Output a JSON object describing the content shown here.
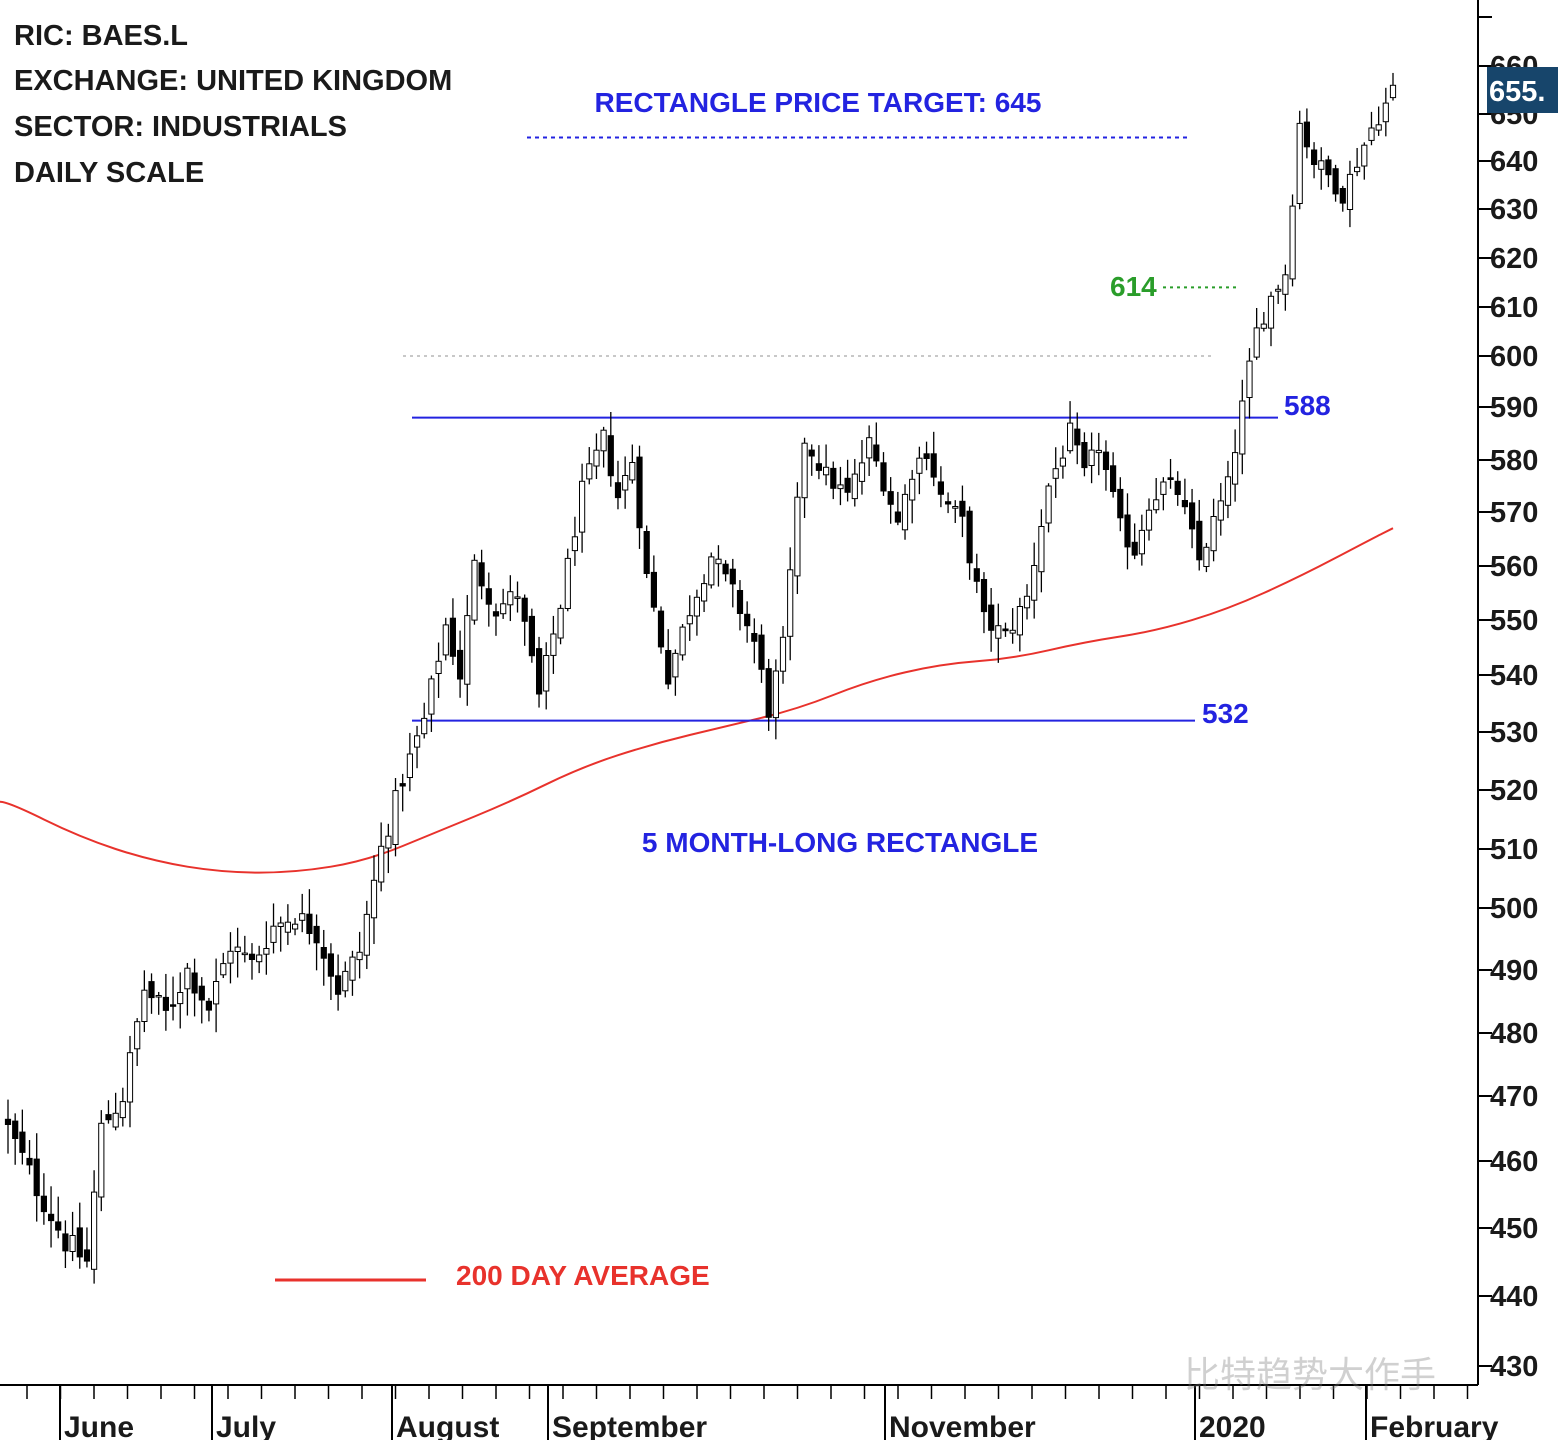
{
  "header": {
    "ric": "RIC: BAES.L",
    "exchange": "EXCHANGE: UNITED KINGDOM",
    "sector": "SECTOR: INDUSTRIALS",
    "scale": "DAILY SCALE"
  },
  "watermark": "比特趋势大作手",
  "colors": {
    "candle": "#000000",
    "up": "#ffffff",
    "ma": "#e8322c",
    "pattern": "#2323e0",
    "breakout": "#2a9d2a",
    "axis": "#000000"
  },
  "chart_data": {
    "type": "candlestick",
    "title": "",
    "ylim": [
      430,
      662
    ],
    "y_ticks": [
      430,
      440,
      450,
      460,
      470,
      480,
      490,
      500,
      510,
      520,
      530,
      540,
      550,
      560,
      570,
      580,
      590,
      600,
      610,
      620,
      630,
      640,
      650,
      660
    ],
    "y_tick_labels": [
      "430",
      "440",
      "450",
      "460",
      "470",
      "480",
      "490",
      "500",
      "510",
      "520",
      "530",
      "540",
      "550",
      "560",
      "570",
      "580",
      "590",
      "600",
      "610",
      "620",
      "630",
      "640",
      "650",
      "660"
    ],
    "x_labels": [
      "June",
      "July",
      "August",
      "September",
      "November",
      "2020",
      "February"
    ],
    "last_price_label": "655.",
    "grid": false,
    "price_path": [
      [
        0,
        465
      ],
      [
        4,
        456
      ],
      [
        8,
        448
      ],
      [
        11,
        445
      ],
      [
        13,
        465
      ],
      [
        16,
        470
      ],
      [
        19,
        487
      ],
      [
        22,
        483
      ],
      [
        25,
        490
      ],
      [
        28,
        484
      ],
      [
        31,
        494
      ],
      [
        34,
        491
      ],
      [
        37,
        497
      ],
      [
        40,
        499
      ],
      [
        43,
        496
      ],
      [
        46,
        487
      ],
      [
        49,
        493
      ],
      [
        52,
        510
      ],
      [
        55,
        522
      ],
      [
        58,
        532
      ],
      [
        61,
        549
      ],
      [
        63,
        540
      ],
      [
        65,
        560
      ],
      [
        68,
        552
      ],
      [
        71,
        555
      ],
      [
        74,
        536
      ],
      [
        77,
        553
      ],
      [
        80,
        574
      ],
      [
        83,
        584
      ],
      [
        85,
        573
      ],
      [
        87,
        580
      ],
      [
        89,
        558
      ],
      [
        92,
        540
      ],
      [
        95,
        552
      ],
      [
        98,
        562
      ],
      [
        101,
        555
      ],
      [
        104,
        546
      ],
      [
        106,
        534
      ],
      [
        108,
        545
      ],
      [
        111,
        584
      ],
      [
        114,
        577
      ],
      [
        117,
        573
      ],
      [
        120,
        583
      ],
      [
        122,
        576
      ],
      [
        124,
        568
      ],
      [
        126,
        578
      ],
      [
        128,
        582
      ],
      [
        130,
        573
      ],
      [
        133,
        568
      ],
      [
        136,
        550
      ],
      [
        139,
        547
      ],
      [
        142,
        554
      ],
      [
        145,
        575
      ],
      [
        148,
        585
      ],
      [
        150,
        577
      ],
      [
        152,
        583
      ],
      [
        155,
        567
      ],
      [
        157,
        563
      ],
      [
        159,
        572
      ],
      [
        161,
        575
      ],
      [
        163,
        574
      ],
      [
        166,
        561
      ],
      [
        170,
        575
      ],
      [
        174,
        605
      ],
      [
        176,
        612
      ],
      [
        178,
        617
      ],
      [
        180,
        648
      ],
      [
        182,
        640
      ],
      [
        184,
        637
      ],
      [
        186,
        633
      ],
      [
        188,
        640
      ],
      [
        190,
        647
      ],
      [
        192,
        652
      ],
      [
        193,
        655
      ]
    ],
    "moving_average": {
      "name": "200 DAY AVERAGE",
      "points": [
        [
          0,
          518
        ],
        [
          10,
          512
        ],
        [
          20,
          508
        ],
        [
          30,
          506
        ],
        [
          40,
          506
        ],
        [
          50,
          508
        ],
        [
          60,
          513
        ],
        [
          70,
          518
        ],
        [
          80,
          524
        ],
        [
          90,
          528
        ],
        [
          100,
          531
        ],
        [
          110,
          534
        ],
        [
          120,
          539
        ],
        [
          130,
          542
        ],
        [
          140,
          543
        ],
        [
          150,
          546
        ],
        [
          160,
          548
        ],
        [
          170,
          552
        ],
        [
          180,
          558
        ],
        [
          190,
          565
        ],
        [
          193,
          567
        ]
      ]
    },
    "annotations": {
      "resistance": {
        "value": 588,
        "label": "588"
      },
      "support": {
        "value": 532,
        "label": "532"
      },
      "target": {
        "value": 645,
        "label": "RECTANGLE PRICE TARGET: 645"
      },
      "breakout": {
        "value": 614,
        "label": "614"
      },
      "pattern_label": "5 MONTH-LONG RECTANGLE",
      "ma_label": "200 DAY AVERAGE",
      "reference_level": 600
    }
  }
}
